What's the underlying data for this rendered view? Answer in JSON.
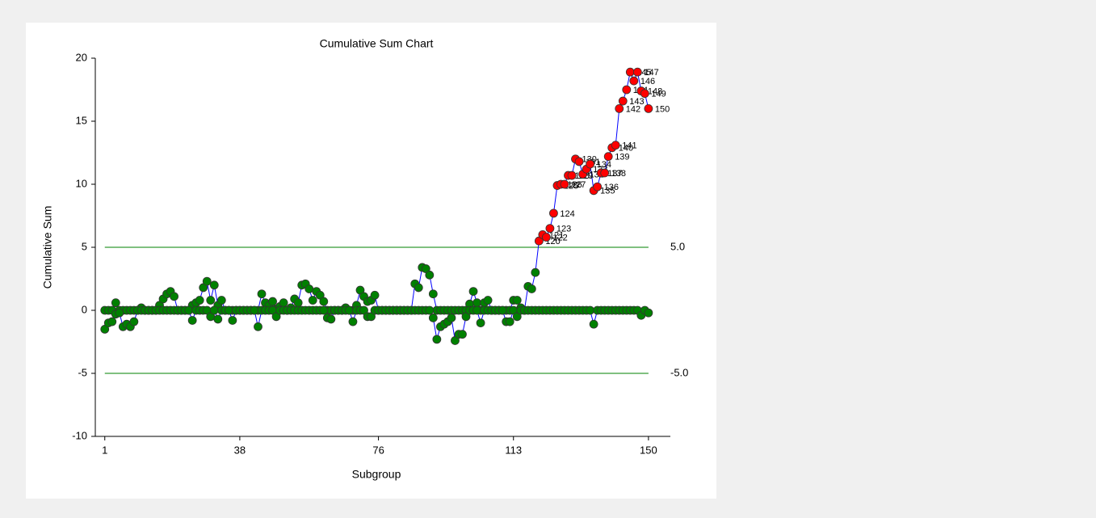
{
  "chart_data": {
    "type": "cusum",
    "title": "Cumulative Sum Chart",
    "x_label": "Subgroup",
    "y_label": "Cumulative Sum",
    "x": [
      1,
      2,
      3,
      4,
      5,
      6,
      7,
      8,
      9,
      10,
      11,
      12,
      13,
      14,
      15,
      16,
      17,
      18,
      19,
      20,
      21,
      22,
      23,
      24,
      25,
      26,
      27,
      28,
      29,
      30,
      31,
      32,
      33,
      34,
      35,
      36,
      37,
      38,
      39,
      40,
      41,
      42,
      43,
      44,
      45,
      46,
      47,
      48,
      49,
      50,
      51,
      52,
      53,
      54,
      55,
      56,
      57,
      58,
      59,
      60,
      61,
      62,
      63,
      64,
      65,
      66,
      67,
      68,
      69,
      70,
      71,
      72,
      73,
      74,
      75,
      76,
      77,
      78,
      79,
      80,
      81,
      82,
      83,
      84,
      85,
      86,
      87,
      88,
      89,
      90,
      91,
      92,
      93,
      94,
      95,
      96,
      97,
      98,
      99,
      100,
      101,
      102,
      103,
      104,
      105,
      106,
      107,
      108,
      109,
      110,
      111,
      112,
      113,
      114,
      115,
      116,
      117,
      118,
      119,
      120,
      121,
      122,
      123,
      124,
      125,
      126,
      127,
      128,
      129,
      130,
      131,
      132,
      133,
      134,
      135,
      136,
      137,
      138,
      139,
      140,
      141,
      142,
      143,
      144,
      145,
      146,
      147,
      148,
      149,
      150
    ],
    "series": [
      {
        "color": "#008000",
        "values": [
          0,
          0,
          0,
          0.6,
          0,
          0,
          0,
          0,
          0,
          0,
          0.2,
          0,
          0,
          0,
          0,
          0.4,
          0.9,
          1.3,
          1.5,
          1.1,
          0,
          0,
          0,
          0,
          0.4,
          0.6,
          0.8,
          1.8,
          2.3,
          0.8,
          2.0,
          0.4,
          0.8,
          0,
          0,
          0,
          0,
          0,
          0,
          0,
          0,
          0,
          0,
          1.3,
          0.6,
          0.4,
          0.7,
          0.1,
          0.3,
          0.6,
          0,
          0.2,
          0.9,
          0.6,
          2.0,
          2.1,
          1.7,
          0.8,
          1.5,
          1.2,
          0.7,
          0,
          0,
          0,
          0,
          0,
          0.2,
          0,
          0,
          0.4,
          1.6,
          1.1,
          0.7,
          0.8,
          1.2,
          0,
          0,
          0,
          0,
          0,
          0,
          0,
          0,
          0,
          0,
          2.1,
          1.8,
          3.4,
          3.3,
          2.8,
          1.3,
          0,
          0,
          0,
          0,
          0,
          0,
          0,
          0,
          0,
          0.5,
          1.5,
          0.6,
          0,
          0.6,
          0.8,
          0,
          0,
          0,
          0,
          0,
          0,
          0.8,
          0.8,
          0.2,
          0,
          1.9,
          1.7,
          3.0,
          5.5,
          6.0,
          5.8,
          6.5,
          7.7,
          9.9,
          10.0,
          10.0,
          10.7,
          10.7,
          12.0,
          11.8,
          10.8,
          11.2,
          11.6,
          9.5,
          9.8,
          10.9,
          10.9,
          12.2,
          12.9,
          13.1,
          16.0,
          16.6,
          17.5,
          18.9,
          18.2,
          18.9,
          17.4,
          17.2,
          16.0
        ]
      },
      {
        "color": "#008000",
        "values": [
          -1.5,
          -1.0,
          -0.9,
          -0.3,
          -0.2,
          -1.3,
          -1.1,
          -1.3,
          -0.9,
          0,
          0,
          0,
          0,
          0,
          0,
          0,
          0,
          0,
          0,
          0,
          0,
          0,
          0,
          0,
          -0.8,
          0,
          0,
          0,
          0,
          -0.5,
          0,
          -0.7,
          0,
          0,
          0,
          -0.8,
          0,
          0,
          0,
          0,
          0,
          0,
          -1.3,
          0,
          0,
          0,
          0,
          -0.5,
          0,
          0,
          0,
          0,
          0,
          0,
          0,
          0,
          0,
          0,
          0,
          0,
          0,
          -0.6,
          -0.7,
          0,
          0,
          0,
          0,
          0,
          -0.9,
          0,
          0,
          0,
          -0.5,
          -0.5,
          0,
          0,
          0,
          0,
          0,
          0,
          0,
          0,
          0,
          0,
          0,
          0,
          0,
          0,
          0,
          0,
          -0.6,
          -2.3,
          -1.3,
          -1.1,
          -0.9,
          -0.6,
          -2.4,
          -1.9,
          -1.9,
          -0.5,
          0,
          0,
          0,
          -1.0,
          0,
          0,
          0,
          0,
          0,
          0,
          -0.9,
          -0.9,
          0,
          -0.5,
          0,
          0,
          0,
          0,
          0,
          0,
          0,
          0,
          0,
          0,
          0,
          0,
          0,
          0,
          0,
          0,
          0,
          0,
          0,
          0,
          -1.1,
          0,
          0,
          0,
          0,
          0,
          0,
          0,
          0,
          0,
          0,
          0,
          0,
          -0.4,
          0,
          -0.2
        ]
      }
    ],
    "line_color": "#0000ff",
    "alert_color": "#ff0000",
    "limit_color": "#008000",
    "limits": [
      {
        "value": 5,
        "label": "5.0"
      },
      {
        "value": -5,
        "label": "-5.0"
      }
    ],
    "xlim": [
      -1.6,
      156
    ],
    "xticks": [
      1,
      38,
      76,
      113,
      150
    ],
    "ylim": [
      -10,
      20
    ],
    "yticks": [
      -10,
      -5,
      0,
      5,
      10,
      15,
      20
    ]
  }
}
